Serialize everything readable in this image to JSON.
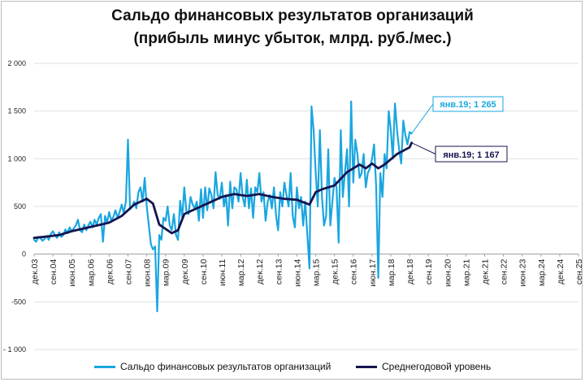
{
  "chart_data": {
    "type": "line",
    "title_line1": "Сальдо финансовых результатов организаций",
    "title_line2": "(прибыль минус убыток, млрд. руб./мес.)",
    "ylim": [
      -1000,
      2000
    ],
    "yticks": [
      -1000,
      -500,
      0,
      500,
      1000,
      1500,
      2000
    ],
    "ytick_labels": [
      "- 1 000",
      "-500",
      "0",
      "500",
      "1 000",
      "1 500",
      "2 000"
    ],
    "xlim": [
      "2003-12",
      "2025-09"
    ],
    "x_labels": [
      "дек.03",
      "сен.04",
      "июн.05",
      "мар.06",
      "дек.06",
      "сен.07",
      "июн.08",
      "мар.09",
      "дек.09",
      "сен.10",
      "июн.11",
      "мар.12",
      "дек.12",
      "сен.13",
      "июн.14",
      "мар.15",
      "дек.15",
      "сен.16",
      "июн.17",
      "мар.18",
      "дек.18",
      "сен.19",
      "июн.20",
      "мар.21",
      "дек.21",
      "сен.22",
      "июн.23",
      "мар.24",
      "дек.24",
      "сен.25"
    ],
    "grid": true,
    "legend_position": "bottom",
    "series": [
      {
        "name": "Сальдо финансовых результатов организаций",
        "color": "#1aa6e0",
        "points": [
          [
            "2003-12",
            150
          ],
          [
            "2004-01",
            130
          ],
          [
            "2004-02",
            180
          ],
          [
            "2004-03",
            170
          ],
          [
            "2004-04",
            140
          ],
          [
            "2004-05",
            160
          ],
          [
            "2004-06",
            190
          ],
          [
            "2004-07",
            150
          ],
          [
            "2004-08",
            210
          ],
          [
            "2004-09",
            240
          ],
          [
            "2004-10",
            200
          ],
          [
            "2004-11",
            170
          ],
          [
            "2004-12",
            230
          ],
          [
            "2005-01",
            180
          ],
          [
            "2005-02",
            200
          ],
          [
            "2005-03",
            260
          ],
          [
            "2005-04",
            220
          ],
          [
            "2005-05",
            280
          ],
          [
            "2005-06",
            240
          ],
          [
            "2005-07",
            270
          ],
          [
            "2005-08",
            300
          ],
          [
            "2005-09",
            360
          ],
          [
            "2005-10",
            250
          ],
          [
            "2005-11",
            230
          ],
          [
            "2005-12",
            310
          ],
          [
            "2006-01",
            250
          ],
          [
            "2006-02",
            300
          ],
          [
            "2006-03",
            340
          ],
          [
            "2006-04",
            280
          ],
          [
            "2006-05",
            360
          ],
          [
            "2006-06",
            310
          ],
          [
            "2006-07",
            380
          ],
          [
            "2006-08",
            420
          ],
          [
            "2006-09",
            130
          ],
          [
            "2006-10",
            400
          ],
          [
            "2006-11",
            330
          ],
          [
            "2006-12",
            440
          ],
          [
            "2007-01",
            350
          ],
          [
            "2007-02",
            390
          ],
          [
            "2007-03",
            460
          ],
          [
            "2007-04",
            380
          ],
          [
            "2007-05",
            440
          ],
          [
            "2007-06",
            520
          ],
          [
            "2007-07",
            430
          ],
          [
            "2007-08",
            560
          ],
          [
            "2007-09",
            1200
          ],
          [
            "2007-10",
            470
          ],
          [
            "2007-11",
            500
          ],
          [
            "2007-12",
            550
          ],
          [
            "2008-01",
            480
          ],
          [
            "2008-02",
            650
          ],
          [
            "2008-03",
            700
          ],
          [
            "2008-04",
            550
          ],
          [
            "2008-05",
            800
          ],
          [
            "2008-06",
            500
          ],
          [
            "2008-07",
            300
          ],
          [
            "2008-08",
            100
          ],
          [
            "2008-09",
            50
          ],
          [
            "2008-10",
            80
          ],
          [
            "2008-11",
            -600
          ],
          [
            "2008-12",
            200
          ],
          [
            "2009-01",
            150
          ],
          [
            "2009-02",
            380
          ],
          [
            "2009-03",
            350
          ],
          [
            "2009-04",
            500
          ],
          [
            "2009-05",
            300
          ],
          [
            "2009-06",
            250
          ],
          [
            "2009-07",
            420
          ],
          [
            "2009-08",
            200
          ],
          [
            "2009-09",
            150
          ],
          [
            "2009-10",
            560
          ],
          [
            "2009-11",
            380
          ],
          [
            "2009-12",
            700
          ],
          [
            "2010-01",
            450
          ],
          [
            "2010-02",
            420
          ],
          [
            "2010-03",
            600
          ],
          [
            "2010-04",
            520
          ],
          [
            "2010-05",
            480
          ],
          [
            "2010-06",
            550
          ],
          [
            "2010-07",
            350
          ],
          [
            "2010-08",
            680
          ],
          [
            "2010-09",
            380
          ],
          [
            "2010-10",
            700
          ],
          [
            "2010-11",
            460
          ],
          [
            "2010-12",
            690
          ],
          [
            "2011-01",
            620
          ],
          [
            "2011-02",
            480
          ],
          [
            "2011-03",
            860
          ],
          [
            "2011-04",
            620
          ],
          [
            "2011-05",
            580
          ],
          [
            "2011-06",
            750
          ],
          [
            "2011-07",
            500
          ],
          [
            "2011-08",
            620
          ],
          [
            "2011-09",
            300
          ],
          [
            "2011-10",
            760
          ],
          [
            "2011-11",
            480
          ],
          [
            "2011-12",
            700
          ],
          [
            "2012-01",
            680
          ],
          [
            "2012-02",
            550
          ],
          [
            "2012-03",
            850
          ],
          [
            "2012-04",
            600
          ],
          [
            "2012-05",
            500
          ],
          [
            "2012-06",
            780
          ],
          [
            "2012-07",
            480
          ],
          [
            "2012-08",
            690
          ],
          [
            "2012-09",
            380
          ],
          [
            "2012-10",
            700
          ],
          [
            "2012-11",
            650
          ],
          [
            "2012-12",
            850
          ],
          [
            "2013-01",
            550
          ],
          [
            "2013-02",
            650
          ],
          [
            "2013-03",
            350
          ],
          [
            "2013-04",
            550
          ],
          [
            "2013-05",
            620
          ],
          [
            "2013-06",
            480
          ],
          [
            "2013-07",
            700
          ],
          [
            "2013-08",
            400
          ],
          [
            "2013-09",
            250
          ],
          [
            "2013-10",
            650
          ],
          [
            "2013-11",
            500
          ],
          [
            "2013-12",
            750
          ],
          [
            "2014-01",
            620
          ],
          [
            "2014-02",
            500
          ],
          [
            "2014-03",
            850
          ],
          [
            "2014-04",
            400
          ],
          [
            "2014-05",
            280
          ],
          [
            "2014-06",
            700
          ],
          [
            "2014-07",
            480
          ],
          [
            "2014-08",
            600
          ],
          [
            "2014-09",
            300
          ],
          [
            "2014-10",
            550
          ],
          [
            "2014-11",
            200
          ],
          [
            "2014-12",
            -150
          ],
          [
            "2015-01",
            1550
          ],
          [
            "2015-02",
            1300
          ],
          [
            "2015-03",
            850
          ],
          [
            "2015-04",
            500
          ],
          [
            "2015-05",
            1300
          ],
          [
            "2015-06",
            600
          ],
          [
            "2015-07",
            300
          ],
          [
            "2015-08",
            400
          ],
          [
            "2015-09",
            1100
          ],
          [
            "2015-10",
            300
          ],
          [
            "2015-11",
            550
          ],
          [
            "2015-12",
            800
          ],
          [
            "2016-01",
            700
          ],
          [
            "2016-02",
            120
          ],
          [
            "2016-03",
            1300
          ],
          [
            "2016-04",
            600
          ],
          [
            "2016-05",
            850
          ],
          [
            "2016-06",
            1100
          ],
          [
            "2016-07",
            500
          ],
          [
            "2016-08",
            1600
          ],
          [
            "2016-09",
            750
          ],
          [
            "2016-10",
            1200
          ],
          [
            "2016-11",
            1050
          ],
          [
            "2016-12",
            800
          ],
          [
            "2017-01",
            850
          ],
          [
            "2017-02",
            1050
          ],
          [
            "2017-03",
            700
          ],
          [
            "2017-04",
            850
          ],
          [
            "2017-05",
            900
          ],
          [
            "2017-06",
            1000
          ],
          [
            "2017-07",
            1150
          ],
          [
            "2017-08",
            700
          ],
          [
            "2017-09",
            -250
          ],
          [
            "2017-10",
            850
          ],
          [
            "2017-11",
            600
          ],
          [
            "2017-12",
            1050
          ],
          [
            "2018-01",
            900
          ],
          [
            "2018-02",
            1500
          ],
          [
            "2018-03",
            1300
          ],
          [
            "2018-04",
            1000
          ],
          [
            "2018-05",
            1580
          ],
          [
            "2018-06",
            1300
          ],
          [
            "2018-07",
            1100
          ],
          [
            "2018-08",
            950
          ],
          [
            "2018-09",
            1400
          ],
          [
            "2018-10",
            1250
          ],
          [
            "2018-11",
            1150
          ],
          [
            "2018-12",
            1280
          ],
          [
            "2019-01",
            1265
          ]
        ]
      },
      {
        "name": "Среднегодовой уровень",
        "color": "#14144f",
        "points": [
          [
            "2003-12",
            170
          ],
          [
            "2004-06",
            185
          ],
          [
            "2004-12",
            200
          ],
          [
            "2005-06",
            240
          ],
          [
            "2005-12",
            270
          ],
          [
            "2006-06",
            300
          ],
          [
            "2006-12",
            330
          ],
          [
            "2007-06",
            400
          ],
          [
            "2007-12",
            520
          ],
          [
            "2008-06",
            580
          ],
          [
            "2008-09",
            530
          ],
          [
            "2008-12",
            310
          ],
          [
            "2009-06",
            220
          ],
          [
            "2009-09",
            250
          ],
          [
            "2009-12",
            420
          ],
          [
            "2010-06",
            480
          ],
          [
            "2010-12",
            540
          ],
          [
            "2011-06",
            600
          ],
          [
            "2011-12",
            630
          ],
          [
            "2012-06",
            610
          ],
          [
            "2012-12",
            630
          ],
          [
            "2013-06",
            600
          ],
          [
            "2013-12",
            580
          ],
          [
            "2014-06",
            570
          ],
          [
            "2014-12",
            520
          ],
          [
            "2015-03",
            650
          ],
          [
            "2015-06",
            680
          ],
          [
            "2015-12",
            720
          ],
          [
            "2016-06",
            860
          ],
          [
            "2016-12",
            940
          ],
          [
            "2017-03",
            900
          ],
          [
            "2017-06",
            950
          ],
          [
            "2017-09",
            900
          ],
          [
            "2017-12",
            940
          ],
          [
            "2018-06",
            1050
          ],
          [
            "2018-12",
            1120
          ],
          [
            "2019-01",
            1167
          ]
        ]
      }
    ],
    "annotations": [
      {
        "text": "янв.19; 1 265",
        "series": 0,
        "x": "2019-01",
        "y": 1265,
        "color": "#1aa6e0"
      },
      {
        "text": "янв.19; 1 167",
        "series": 1,
        "x": "2019-01",
        "y": 1167,
        "color": "#14144f"
      }
    ],
    "legend": [
      {
        "label": "Сальдо финансовых результатов организаций",
        "color": "#1aa6e0"
      },
      {
        "label": "Среднегодовой уровень",
        "color": "#14144f"
      }
    ]
  }
}
